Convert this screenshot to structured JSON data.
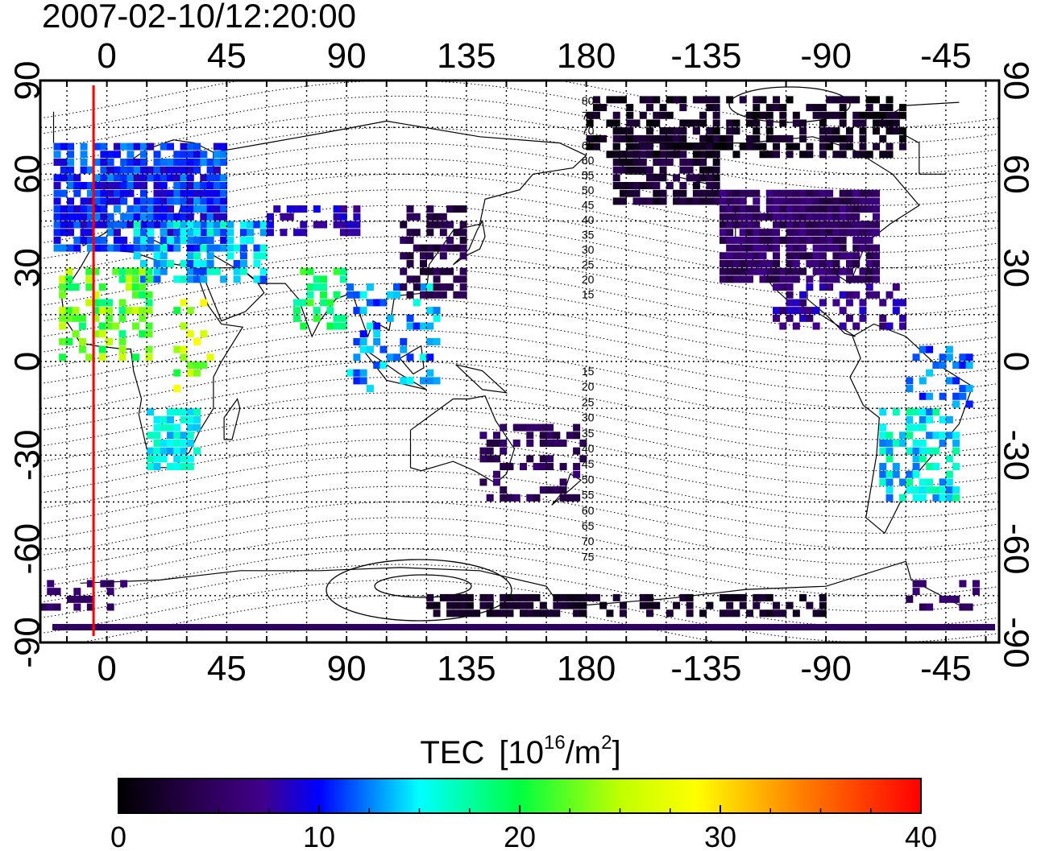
{
  "title": "2007-02-10/12:20:00",
  "map": {
    "type": "world-tec-map",
    "lon_ticks_top": [
      "0",
      "45",
      "90",
      "135",
      "180",
      "-135",
      "-90",
      "-45"
    ],
    "lon_ticks_bottom": [
      "0",
      "45",
      "90",
      "135",
      "180",
      "-135",
      "-90",
      "-45"
    ],
    "lat_ticks_left": [
      "90",
      "60",
      "30",
      "0",
      "-30",
      "-60",
      "-90"
    ],
    "lat_ticks_right": [
      "90",
      "60",
      "30",
      "0",
      "-30",
      "-60",
      "-90"
    ],
    "longitude_range": [
      -25,
      335
    ],
    "latitude_range": [
      -90,
      90
    ],
    "grid": true,
    "terminator_longitude": -5,
    "terminator_color": "#ff0000",
    "contour_labels_north": [
      "80",
      "75",
      "70",
      "65",
      "60",
      "55",
      "50",
      "45",
      "40",
      "35",
      "30",
      "25",
      "20",
      "15"
    ],
    "contour_labels_south": [
      "15",
      "20",
      "25",
      "30",
      "35",
      "40",
      "45",
      "50",
      "55",
      "60",
      "65",
      "70",
      "75"
    ]
  },
  "colorbar": {
    "label": "TEC",
    "unit_base": "[10",
    "unit_exp": "16",
    "unit_mid": "/m",
    "unit_exp2": "2",
    "unit_end": "]",
    "range": [
      0,
      40
    ],
    "ticks": [
      "0",
      "10",
      "20",
      "30",
      "40"
    ],
    "colors": [
      "#000000",
      "#3a0070",
      "#0000ff",
      "#00ffff",
      "#00ff00",
      "#ffff00",
      "#ff8000",
      "#ff0000"
    ]
  }
}
